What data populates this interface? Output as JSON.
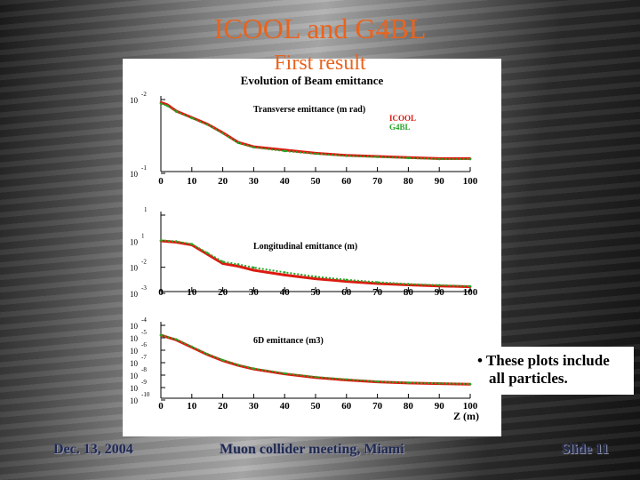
{
  "slide": {
    "title": "ICOOL and G4BL",
    "subtitle": "First result",
    "note_line1": "• These plots include",
    "note_line2": "all particles.",
    "footer_left": "Dec. 13, 2004",
    "footer_center": "Muon collider meeting, Miami",
    "footer_right": "Slide 11"
  },
  "chart_data": {
    "type": "line",
    "title": "Evolution of Beam emittance",
    "xlabel": "Z (m)",
    "x_ticks": [
      "0",
      "10",
      "20",
      "30",
      "40",
      "50",
      "60",
      "70",
      "80",
      "90",
      "100"
    ],
    "colors": {
      "ICOOL": "#dd1a10",
      "G4BL": "#2aa52a"
    },
    "panels": [
      {
        "label": "Transverse emittance (m rad)",
        "legend": [
          "ICOOL",
          "G4BL"
        ],
        "ylabel_ticks": [
          {
            "base": "10",
            "exp": "-2"
          },
          {
            "base": "10",
            "exp": "-1"
          }
        ],
        "log_ylim": [
          -1.55,
          -0.85
        ],
        "x": [
          0,
          2,
          5,
          10,
          15,
          20,
          25,
          30,
          40,
          50,
          60,
          70,
          80,
          90,
          100
        ],
        "series": [
          {
            "name": "ICOOL",
            "values": [
              -0.91,
              -0.93,
              -0.99,
              -1.05,
              -1.11,
              -1.19,
              -1.28,
              -1.32,
              -1.35,
              -1.38,
              -1.4,
              -1.41,
              -1.42,
              -1.43,
              -1.43
            ]
          },
          {
            "name": "G4BL",
            "values": [
              -0.92,
              -0.94,
              -0.995,
              -1.055,
              -1.115,
              -1.195,
              -1.285,
              -1.325,
              -1.36,
              -1.385,
              -1.405,
              -1.415,
              -1.425,
              -1.435,
              -1.435
            ]
          }
        ]
      },
      {
        "label": "Longitudinal emittance (m)",
        "legend": [],
        "ylabel_ticks": [
          {
            "base": "",
            "exp": "1"
          },
          {
            "base": "10",
            "exp": "1"
          },
          {
            "base": "10",
            "exp": "-2"
          },
          {
            "base": "10",
            "exp": "-3"
          }
        ],
        "log_ylim": [
          -3.0,
          0.0
        ],
        "x": [
          0,
          5,
          10,
          15,
          20,
          25,
          30,
          40,
          50,
          60,
          70,
          80,
          90,
          100
        ],
        "series": [
          {
            "name": "ICOOL",
            "values": [
              -1.1,
              -1.15,
              -1.25,
              -1.6,
              -1.95,
              -2.05,
              -2.2,
              -2.38,
              -2.52,
              -2.62,
              -2.7,
              -2.75,
              -2.79,
              -2.82
            ]
          },
          {
            "name": "G4BL",
            "values": [
              -1.08,
              -1.12,
              -1.22,
              -1.55,
              -1.88,
              -1.98,
              -2.1,
              -2.28,
              -2.44,
              -2.56,
              -2.65,
              -2.72,
              -2.76,
              -2.8
            ]
          }
        ]
      },
      {
        "label": "6D emittance (m3)",
        "legend": [],
        "ylabel_ticks": [
          {
            "base": "10",
            "exp": "-4"
          },
          {
            "base": "10",
            "exp": "-5"
          },
          {
            "base": "10",
            "exp": "-6"
          },
          {
            "base": "10",
            "exp": "-7"
          },
          {
            "base": "10",
            "exp": "-8"
          },
          {
            "base": "10",
            "exp": "-9"
          },
          {
            "base": "10",
            "exp": "-10"
          }
        ],
        "log_ylim": [
          -10.2,
          -3.9
        ],
        "x": [
          0,
          5,
          10,
          15,
          20,
          25,
          30,
          40,
          50,
          60,
          70,
          80,
          90,
          100
        ],
        "series": [
          {
            "name": "ICOOL",
            "values": [
              -5.0,
              -5.4,
              -6.0,
              -6.6,
              -7.1,
              -7.5,
              -7.8,
              -8.2,
              -8.5,
              -8.7,
              -8.85,
              -8.95,
              -9.0,
              -9.05
            ]
          },
          {
            "name": "G4BL",
            "values": [
              -5.0,
              -5.35,
              -5.95,
              -6.55,
              -7.05,
              -7.45,
              -7.75,
              -8.15,
              -8.45,
              -8.65,
              -8.82,
              -8.92,
              -8.98,
              -9.03
            ]
          }
        ]
      }
    ]
  }
}
